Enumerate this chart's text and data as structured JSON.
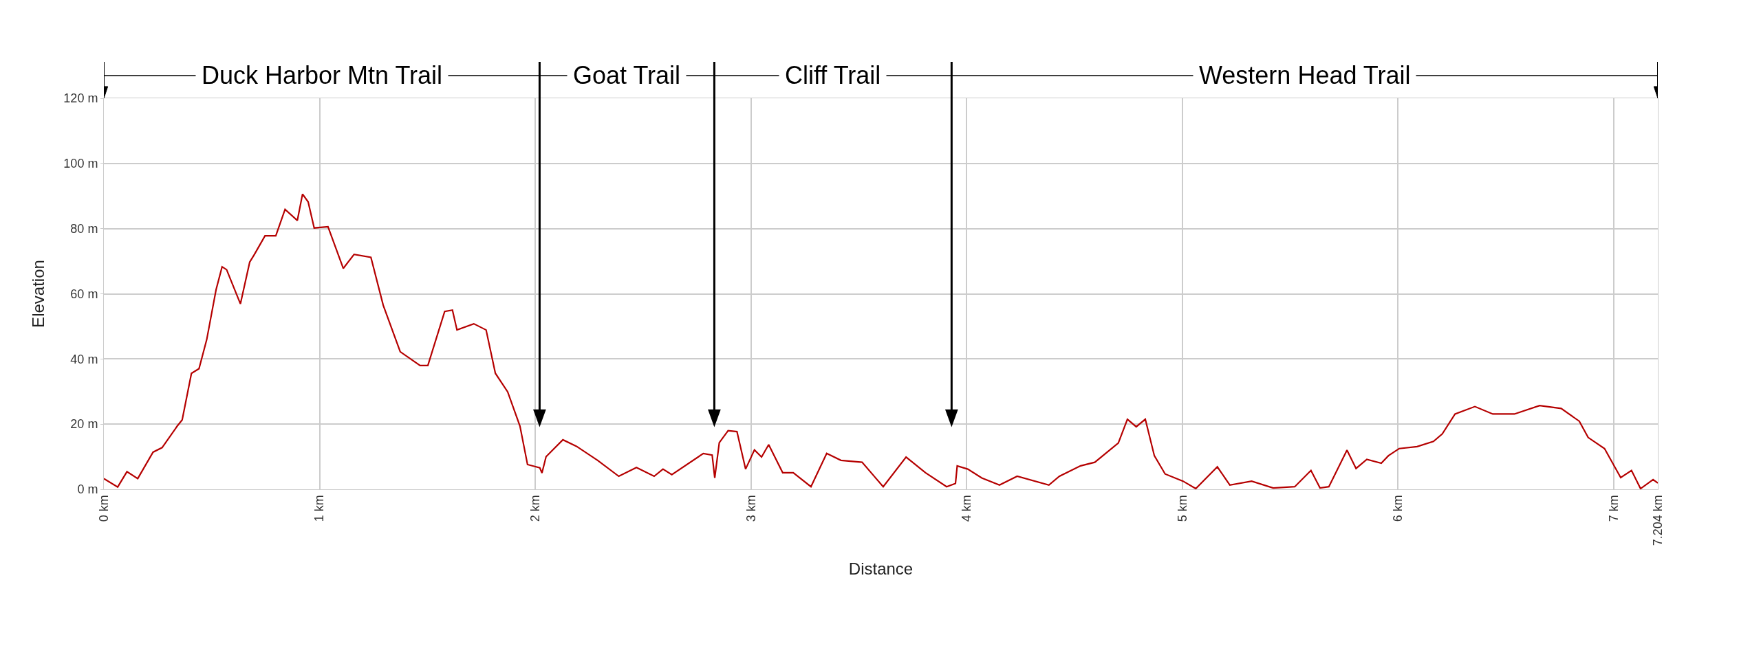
{
  "chart_data": {
    "type": "line",
    "xlabel": "Distance",
    "ylabel": "Elevation",
    "xlim": [
      0,
      7.204
    ],
    "ylim": [
      0,
      120
    ],
    "xticks": [
      {
        "value": 0,
        "label": "0 km"
      },
      {
        "value": 1,
        "label": "1 km"
      },
      {
        "value": 2,
        "label": "2 km"
      },
      {
        "value": 3,
        "label": "3 km"
      },
      {
        "value": 4,
        "label": "4 km"
      },
      {
        "value": 5,
        "label": "5 km"
      },
      {
        "value": 6,
        "label": "6 km"
      },
      {
        "value": 7,
        "label": "7 km"
      },
      {
        "value": 7.204,
        "label": "7.204 km"
      }
    ],
    "yticks": [
      {
        "value": 0,
        "label": "0 m"
      },
      {
        "value": 20,
        "label": "20 m"
      },
      {
        "value": 40,
        "label": "40 m"
      },
      {
        "value": 60,
        "label": "60 m"
      },
      {
        "value": 80,
        "label": "80 m"
      },
      {
        "value": 100,
        "label": "100 m"
      },
      {
        "value": 120,
        "label": "120 m"
      }
    ],
    "grid": true,
    "marker": "none",
    "line_style": "solid",
    "series": [
      {
        "color": "#b50000",
        "x": [
          0,
          0.064,
          0.107,
          0.157,
          0.228,
          0.27,
          0.34,
          0.363,
          0.406,
          0.441,
          0.477,
          0.52,
          0.548,
          0.569,
          0.633,
          0.676,
          0.698,
          0.747,
          0.797,
          0.84,
          0.897,
          0.921,
          0.947,
          0.975,
          1.039,
          1.11,
          1.16,
          1.238,
          1.295,
          1.374,
          1.466,
          1.502,
          1.58,
          1.616,
          1.637,
          1.715,
          1.772,
          1.815,
          1.872,
          1.929,
          1.964,
          2.021,
          2.031,
          2.05,
          2.128,
          2.191,
          2.289,
          2.387,
          2.469,
          2.551,
          2.592,
          2.633,
          2.779,
          2.82,
          2.832,
          2.853,
          2.894,
          2.935,
          2.975,
          3.016,
          3.049,
          3.082,
          3.147,
          3.196,
          3.278,
          3.351,
          3.417,
          3.515,
          3.613,
          3.719,
          3.809,
          3.907,
          3.948,
          3.956,
          4.005,
          4.07,
          4.152,
          4.234,
          4.381,
          4.43,
          4.528,
          4.594,
          4.703,
          4.745,
          4.786,
          4.828,
          4.87,
          4.92,
          5.003,
          5.062,
          5.162,
          5.22,
          5.321,
          5.421,
          5.521,
          5.596,
          5.638,
          5.679,
          5.763,
          5.805,
          5.855,
          5.922,
          5.955,
          6.005,
          6.088,
          6.164,
          6.205,
          6.264,
          6.356,
          6.439,
          6.539,
          6.656,
          6.756,
          6.84,
          6.881,
          6.957,
          7.032,
          7.082,
          7.124,
          7.182,
          7.204
        ],
        "values": [
          3.3,
          0.7,
          5.4,
          3.3,
          11.4,
          12.8,
          19.4,
          21.3,
          35.6,
          37,
          46,
          61.2,
          68.3,
          67.4,
          56.9,
          69.7,
          72.1,
          77.8,
          77.8,
          85.9,
          82.5,
          90.6,
          88.2,
          80.2,
          80.6,
          67.8,
          72.1,
          71.2,
          56.5,
          42.2,
          38,
          38,
          54.6,
          55,
          48.9,
          50.8,
          48.9,
          35.6,
          29.9,
          19.4,
          7.6,
          6.6,
          5,
          10,
          15.2,
          13.2,
          8.9,
          4,
          6.7,
          4,
          6.2,
          4.5,
          11,
          10.5,
          3.5,
          14.3,
          18,
          17.7,
          6.2,
          12.1,
          9.9,
          13.7,
          5.1,
          5.1,
          0.8,
          11,
          8.9,
          8.3,
          0.8,
          9.9,
          5.1,
          0.8,
          1.8,
          7.2,
          6.2,
          3.5,
          1.3,
          4,
          1.3,
          4,
          7.2,
          8.3,
          14.2,
          21.5,
          19.2,
          21.5,
          10.3,
          4.7,
          2.5,
          0.2,
          6.9,
          1.3,
          2.5,
          0.4,
          0.8,
          5.8,
          0.4,
          0.8,
          12,
          6.4,
          9.2,
          8,
          10.3,
          12.5,
          13.1,
          14.7,
          17,
          23.1,
          25.4,
          23.1,
          23.1,
          25.7,
          24.8,
          20.9,
          15.9,
          12.5,
          3.6,
          5.8,
          0.2,
          3,
          1.9
        ]
      }
    ],
    "annotations": [
      "Duck Harbor Mtn Trail",
      "Goat Trail",
      "Cliff Trail",
      "Western Head Trail"
    ],
    "ref_lines": [
      {
        "axis": "x",
        "value": 2.02,
        "color": "#000000"
      },
      {
        "axis": "x",
        "value": 2.83,
        "color": "#000000"
      },
      {
        "axis": "x",
        "value": 3.93,
        "color": "#000000"
      }
    ]
  }
}
